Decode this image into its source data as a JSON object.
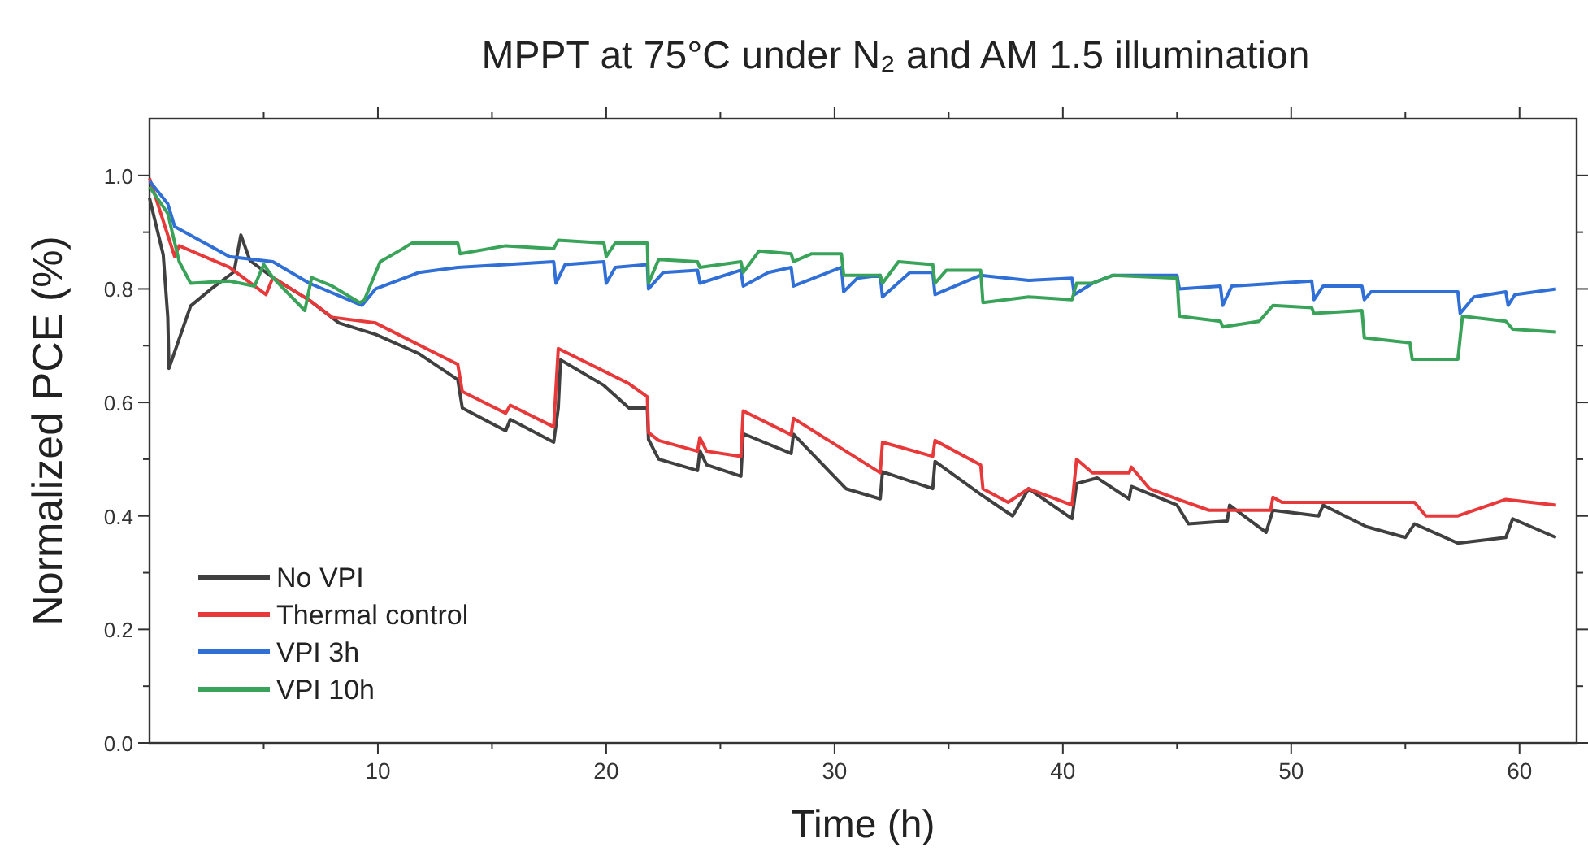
{
  "chart_data": {
    "type": "line",
    "title": "MPPT at 75°C under N₂ and AM 1.5 illumination",
    "xlabel": "Time (h)",
    "ylabel": "Normalized PCE (%)",
    "xlim": [
      0,
      62.5
    ],
    "ylim": [
      0,
      1.1
    ],
    "xticks": [
      {
        "value": 5,
        "label": null
      },
      10,
      {
        "value": 15,
        "label": null
      },
      20,
      {
        "value": 25,
        "label": null
      },
      30,
      {
        "value": 35,
        "label": null
      },
      40,
      {
        "value": 45,
        "label": null
      },
      50,
      {
        "value": 55,
        "label": null
      },
      60
    ],
    "yticks": [
      {
        "value": 0,
        "label": "0.0"
      },
      {
        "value": 0.1,
        "label": null
      },
      {
        "value": 0.2,
        "label": "0.2"
      },
      {
        "value": 0.3,
        "label": null
      },
      {
        "value": 0.4,
        "label": "0.4"
      },
      {
        "value": 0.5,
        "label": null
      },
      {
        "value": 0.6,
        "label": "0.6"
      },
      {
        "value": 0.7,
        "label": null
      },
      {
        "value": 0.8,
        "label": "0.8"
      },
      {
        "value": 0.9,
        "label": null
      },
      {
        "value": 1.0,
        "label": "1.0"
      }
    ],
    "grid": false,
    "legend": "bottom left",
    "marker": "none",
    "line_style": "solid",
    "series": [
      {
        "name": "No VPI",
        "color": "#404040",
        "x": [
          0,
          0.6,
          0.8,
          0.85,
          1.8,
          2.7,
          3.7,
          4,
          4.4,
          5.4,
          7,
          8.3,
          9.9,
          11.8,
          13.5,
          13.7,
          15.6,
          15.8,
          17.7,
          17.9,
          18,
          19.9,
          21,
          21.8,
          21.85,
          22.3,
          24,
          24.1,
          24.4,
          25.9,
          26,
          28.1,
          28.2,
          30.5,
          32,
          32.1,
          34.3,
          34.4,
          36.4,
          37.8,
          38.5,
          40.4,
          40.6,
          41.5,
          42.9,
          43,
          45,
          45.5,
          47.2,
          47.3,
          48.9,
          49.2,
          51.2,
          51.4,
          53.3,
          55,
          55.4,
          57.3,
          59.4,
          59.7,
          61.6
        ],
        "values": [
          0.96,
          0.86,
          0.75,
          0.66,
          0.77,
          0.8,
          0.83,
          0.895,
          0.85,
          0.82,
          0.78,
          0.74,
          0.72,
          0.686,
          0.64,
          0.59,
          0.55,
          0.57,
          0.53,
          0.59,
          0.675,
          0.63,
          0.59,
          0.59,
          0.535,
          0.5,
          0.48,
          0.515,
          0.49,
          0.47,
          0.545,
          0.51,
          0.544,
          0.448,
          0.43,
          0.478,
          0.448,
          0.496,
          0.438,
          0.4,
          0.448,
          0.395,
          0.457,
          0.467,
          0.43,
          0.452,
          0.419,
          0.386,
          0.391,
          0.419,
          0.371,
          0.41,
          0.4,
          0.419,
          0.381,
          0.362,
          0.386,
          0.352,
          0.362,
          0.395,
          0.362
        ]
      },
      {
        "name": "Thermal control",
        "color": "#e8393a",
        "x": [
          0,
          1.1,
          1.3,
          3.5,
          5.1,
          5.4,
          7,
          8,
          9.9,
          13.5,
          13.7,
          15.6,
          15.8,
          17.7,
          17.9,
          21,
          21.8,
          21.85,
          22.3,
          24,
          24.1,
          24.4,
          25.9,
          26,
          28.1,
          28.2,
          30.5,
          32,
          32.1,
          34.3,
          34.4,
          36.4,
          36.5,
          37.6,
          38.5,
          40.4,
          40.6,
          41.3,
          42.9,
          43,
          43.8,
          45,
          46.4,
          49.1,
          49.2,
          49.6,
          55.4,
          55.9,
          57.3,
          59.4,
          61.6
        ],
        "values": [
          0.995,
          0.857,
          0.876,
          0.838,
          0.79,
          0.82,
          0.78,
          0.75,
          0.74,
          0.667,
          0.619,
          0.581,
          0.595,
          0.557,
          0.695,
          0.633,
          0.61,
          0.547,
          0.533,
          0.514,
          0.538,
          0.514,
          0.505,
          0.585,
          0.543,
          0.572,
          0.514,
          0.476,
          0.53,
          0.505,
          0.533,
          0.49,
          0.448,
          0.424,
          0.448,
          0.419,
          0.5,
          0.476,
          0.476,
          0.486,
          0.448,
          0.43,
          0.41,
          0.41,
          0.433,
          0.424,
          0.424,
          0.4,
          0.4,
          0.429,
          0.419
        ]
      },
      {
        "name": "VPI 3h",
        "color": "#2f6fd6",
        "x": [
          0,
          0.8,
          1.1,
          3.5,
          5.4,
          7,
          9.3,
          9.9,
          11.8,
          13.5,
          15.6,
          17.7,
          17.8,
          18.2,
          19.9,
          20,
          20.4,
          21.8,
          21.85,
          22.5,
          24,
          24.1,
          25.9,
          26,
          27.1,
          28.1,
          28.2,
          30.3,
          30.4,
          31,
          32,
          32.1,
          33.3,
          34.3,
          34.4,
          36.4,
          38.5,
          40.4,
          40.5,
          41.3,
          42.2,
          45,
          45.1,
          46.9,
          47,
          47.4,
          50.9,
          51,
          51.4,
          53.1,
          53.2,
          53.5,
          57.3,
          57.4,
          58,
          59.4,
          59.5,
          59.8,
          61.6
        ],
        "values": [
          0.99,
          0.95,
          0.91,
          0.857,
          0.848,
          0.81,
          0.771,
          0.8,
          0.829,
          0.838,
          0.843,
          0.848,
          0.81,
          0.843,
          0.848,
          0.81,
          0.838,
          0.843,
          0.8,
          0.829,
          0.833,
          0.81,
          0.833,
          0.805,
          0.829,
          0.838,
          0.805,
          0.838,
          0.795,
          0.819,
          0.824,
          0.786,
          0.829,
          0.829,
          0.79,
          0.824,
          0.815,
          0.819,
          0.79,
          0.81,
          0.824,
          0.824,
          0.8,
          0.805,
          0.771,
          0.805,
          0.814,
          0.781,
          0.805,
          0.805,
          0.781,
          0.795,
          0.795,
          0.757,
          0.786,
          0.795,
          0.771,
          0.79,
          0.8
        ]
      },
      {
        "name": "VPI 10h",
        "color": "#3aa35a",
        "x": [
          0,
          0.8,
          1.3,
          1.8,
          3.5,
          4.6,
          5,
          5.4,
          6.8,
          7.1,
          8,
          9.2,
          9.4,
          10.1,
          11.1,
          11.5,
          13.5,
          13.6,
          15.6,
          17.7,
          17.9,
          19.9,
          20,
          20.4,
          21.8,
          21.85,
          22.3,
          24,
          24.1,
          25.9,
          26,
          26.7,
          28.1,
          28.2,
          29,
          30.3,
          30.4,
          32,
          32.1,
          32.8,
          34.3,
          34.4,
          34.9,
          36.4,
          36.5,
          38.5,
          40.4,
          40.6,
          41.3,
          42.2,
          45,
          45.1,
          46.9,
          47,
          48.6,
          49.2,
          50.9,
          51,
          53.1,
          53.2,
          55.2,
          55.3,
          57.3,
          57.5,
          59.4,
          59.7,
          61.6
        ],
        "values": [
          0.98,
          0.933,
          0.848,
          0.81,
          0.814,
          0.805,
          0.843,
          0.82,
          0.762,
          0.82,
          0.805,
          0.776,
          0.78,
          0.848,
          0.871,
          0.881,
          0.881,
          0.862,
          0.876,
          0.871,
          0.886,
          0.881,
          0.857,
          0.881,
          0.881,
          0.81,
          0.852,
          0.848,
          0.838,
          0.848,
          0.829,
          0.867,
          0.862,
          0.848,
          0.862,
          0.862,
          0.824,
          0.824,
          0.81,
          0.848,
          0.843,
          0.81,
          0.833,
          0.833,
          0.776,
          0.786,
          0.781,
          0.81,
          0.81,
          0.824,
          0.819,
          0.752,
          0.743,
          0.733,
          0.743,
          0.771,
          0.767,
          0.757,
          0.762,
          0.714,
          0.705,
          0.676,
          0.676,
          0.752,
          0.743,
          0.729,
          0.724
        ]
      }
    ]
  }
}
